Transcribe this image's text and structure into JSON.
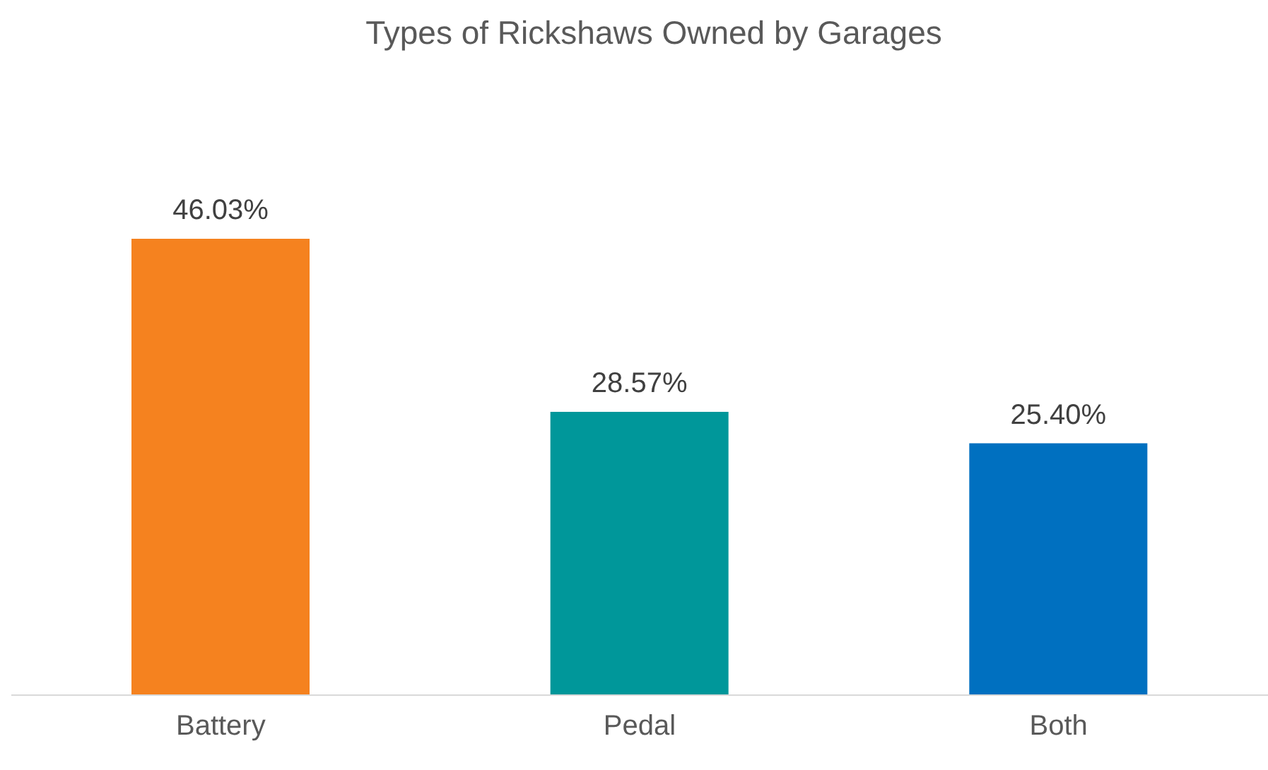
{
  "chart_data": {
    "type": "bar",
    "title": "Types of Rickshaws Owned by Garages",
    "categories": [
      "Battery",
      "Pedal",
      "Both"
    ],
    "values": [
      46.03,
      28.57,
      25.4
    ],
    "colors": [
      "#f5821f",
      "#00979a",
      "#0070c0"
    ],
    "value_labels": [
      "46.03%",
      "28.57%",
      "25.40%"
    ]
  }
}
